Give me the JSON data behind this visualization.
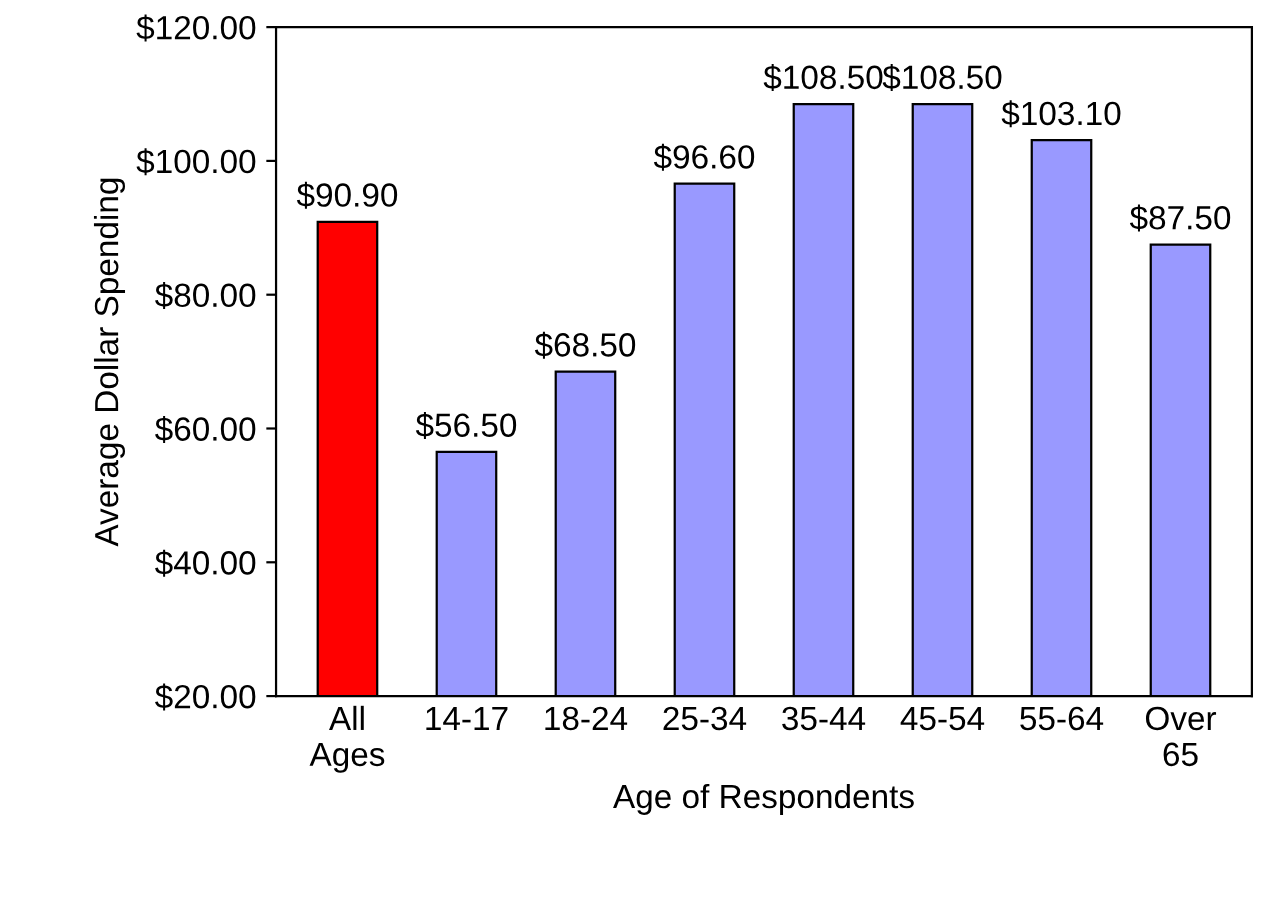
{
  "chart_data": {
    "type": "bar",
    "xlabel": "Age of Respondents",
    "ylabel": "Average Dollar Spending",
    "categories": [
      "All\nAges",
      "14-17",
      "18-24",
      "25-34",
      "35-44",
      "45-54",
      "55-64",
      "Over\n65"
    ],
    "values": [
      90.9,
      56.5,
      68.5,
      96.6,
      108.5,
      108.5,
      103.1,
      87.5
    ],
    "colors": [
      "#ff0000",
      "#9999ff",
      "#9999ff",
      "#9999ff",
      "#9999ff",
      "#9999ff",
      "#9999ff",
      "#9999ff"
    ],
    "value_labels": [
      "$90.90",
      "$56.50",
      "$68.50",
      "$96.60",
      "$108.50",
      "$108.50",
      "$103.10",
      "$87.50"
    ],
    "ylim": [
      20,
      120
    ],
    "yticks": [
      {
        "value": 20,
        "label": "$20.00"
      },
      {
        "value": 40,
        "label": "$40.00"
      },
      {
        "value": 60,
        "label": "$60.00"
      },
      {
        "value": 80,
        "label": "$80.00"
      },
      {
        "value": 100,
        "label": "$100.00"
      },
      {
        "value": 120,
        "label": "$120.00"
      }
    ],
    "grid": false,
    "legend": false
  }
}
